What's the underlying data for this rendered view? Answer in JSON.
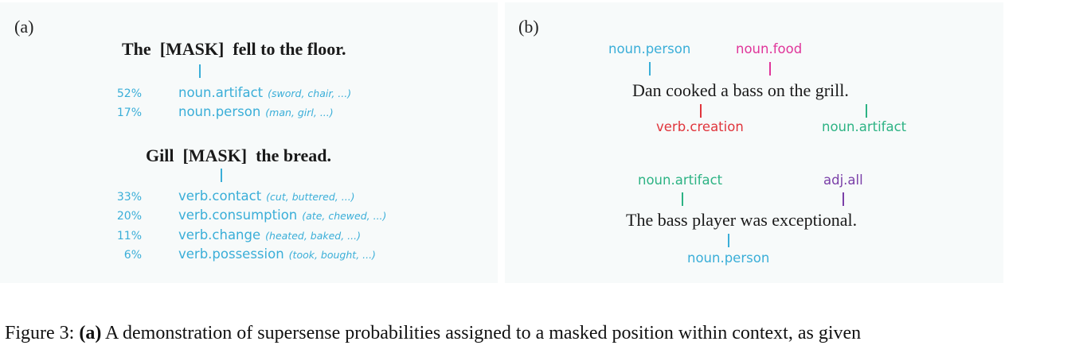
{
  "colors": {
    "blue": "#3aaed8",
    "magenta": "#e0359a",
    "red": "#e0353c",
    "green": "#2db384",
    "purple": "#7a3fa8"
  },
  "panel_a": {
    "label": "(a)",
    "example1": {
      "pre": "The",
      "mask": "[MASK]",
      "post": "fell to the floor.",
      "predictions": [
        {
          "pct": "52%",
          "sense": "noun.artifact",
          "examples": "(sword, chair, ...)"
        },
        {
          "pct": "17%",
          "sense": "noun.person",
          "examples": "(man, girl, ...)"
        }
      ]
    },
    "example2": {
      "pre": "Gill",
      "mask": "[MASK]",
      "post": "the bread.",
      "predictions": [
        {
          "pct": "33%",
          "sense": "verb.contact",
          "examples": "(cut, buttered, ...)"
        },
        {
          "pct": "20%",
          "sense": "verb.consumption",
          "examples": "(ate, chewed, ...)"
        },
        {
          "pct": "11%",
          "sense": "verb.change",
          "examples": "(heated, baked, ...)"
        },
        {
          "pct": "6%",
          "sense": "verb.possession",
          "examples": "(took, bought, ...)"
        }
      ]
    }
  },
  "panel_b": {
    "label": "(b)",
    "sentence1": "Dan cooked a bass on the grill.",
    "s1_top": [
      "noun.person",
      "noun.food"
    ],
    "s1_bottom": [
      "verb.creation",
      "noun.artifact"
    ],
    "sentence2": "The bass player was exceptional.",
    "s2_top": [
      "noun.artifact",
      "adj.all"
    ],
    "s2_bottom": [
      "noun.person"
    ]
  },
  "caption": {
    "prefix": "Figure 3: ",
    "bold": "(a)",
    "text": " A demonstration of supersense probabilities assigned to a masked position within context, as given"
  }
}
